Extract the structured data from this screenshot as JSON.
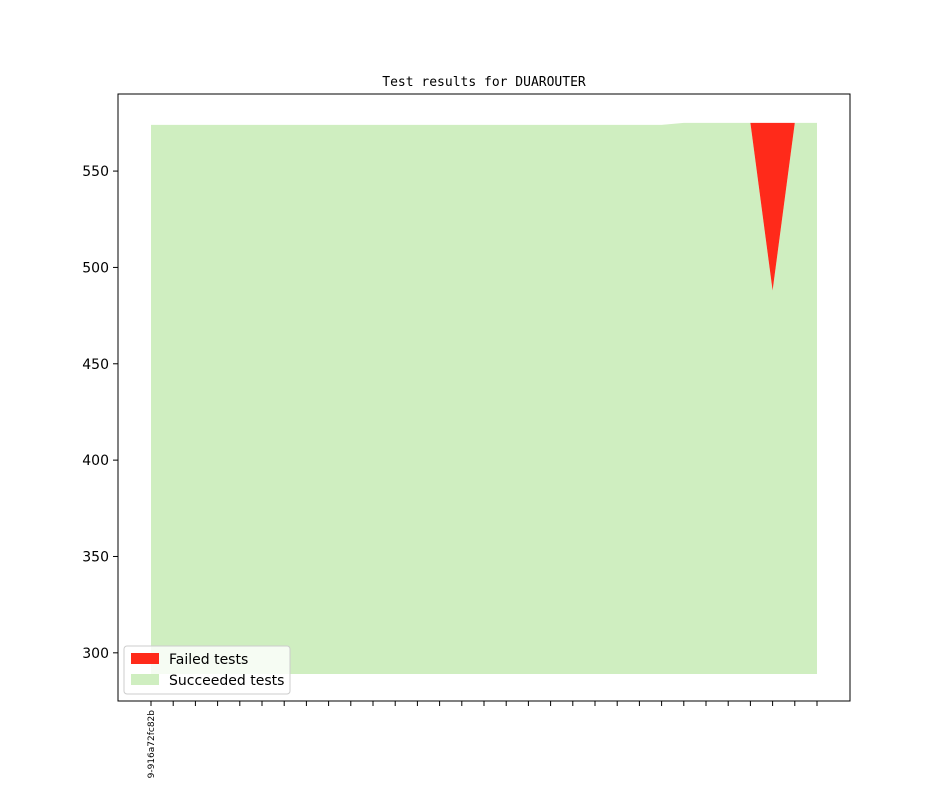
{
  "chart_data": {
    "type": "area",
    "title": "Test results for DUAROUTER",
    "xlabel": "",
    "ylabel": "",
    "ylim": [
      275,
      590
    ],
    "yticks": [
      300,
      350,
      400,
      450,
      500,
      550
    ],
    "x_count": 31,
    "x_tick_labels": [
      {
        "index": 0,
        "label": "9-916a72fc82b"
      }
    ],
    "baseline": 289,
    "series": [
      {
        "name": "Succeeded tests",
        "color": "#cfeec0",
        "values": [
          574,
          574,
          574,
          574,
          574,
          574,
          574,
          574,
          574,
          574,
          574,
          574,
          574,
          574,
          574,
          574,
          574,
          574,
          574,
          574,
          574,
          574,
          574,
          574,
          575,
          575,
          575,
          575,
          488,
          575,
          575
        ]
      },
      {
        "name": "Failed tests",
        "color": "#ff2a1a",
        "values": [
          0,
          0,
          0,
          0,
          0,
          0,
          0,
          0,
          0,
          0,
          0,
          0,
          0,
          0,
          0,
          0,
          0,
          0,
          0,
          0,
          0,
          0,
          0,
          0,
          0,
          0,
          0,
          0,
          87,
          0,
          0
        ]
      }
    ],
    "legend_position": "lower-left",
    "legend": [
      {
        "label": "Failed tests",
        "color": "#ff2a1a"
      },
      {
        "label": "Succeeded tests",
        "color": "#cfeec0"
      }
    ]
  }
}
